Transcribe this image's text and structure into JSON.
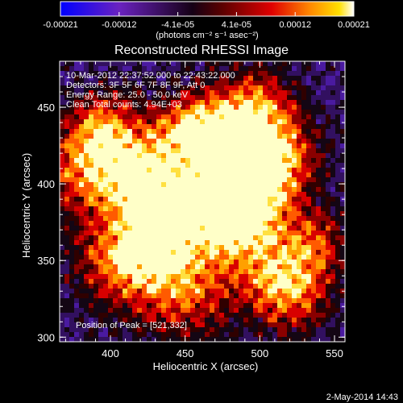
{
  "colorbar": {
    "min": -0.00021,
    "max": 0.00021,
    "tick_labels": [
      "-0.00021",
      "-0.00012",
      "-4.1e-05",
      "4.1e-05",
      "0.00012",
      "0.00021"
    ],
    "units_label": "(photons cm⁻² s⁻¹ asec⁻²)",
    "colors": [
      "#0000ff",
      "#7a1eb0",
      "#000000",
      "#7a0000",
      "#e00000",
      "#ff7a00",
      "#ffd000",
      "#ffffff"
    ]
  },
  "chart_data": {
    "type": "heatmap",
    "title": "Reconstructed RHESSI Image",
    "xlabel": "Heliocentric X (arcsec)",
    "ylabel": "Heliocentric Y (arcsec)",
    "xlim": [
      366,
      557
    ],
    "ylim": [
      297,
      480
    ],
    "x_ticks": [
      400,
      450,
      500,
      550
    ],
    "y_ticks": [
      300,
      350,
      400,
      450
    ],
    "peak": [
      521,
      332
    ]
  },
  "annotations": {
    "time_range": "10-Mar-2012 22:37:52.000 to 22:43:22.000",
    "detectors": "Detectors: 3F 5F 6F 7F 8F 9F, Att 0",
    "energy": "Energy Range: 25.0 - 50.0 keV",
    "clean": "Clean     Total counts: 4.94E+03",
    "peak_label": "Position of Peak = [521,332]"
  },
  "footer": {
    "date": "2-May-2014 14:43"
  }
}
